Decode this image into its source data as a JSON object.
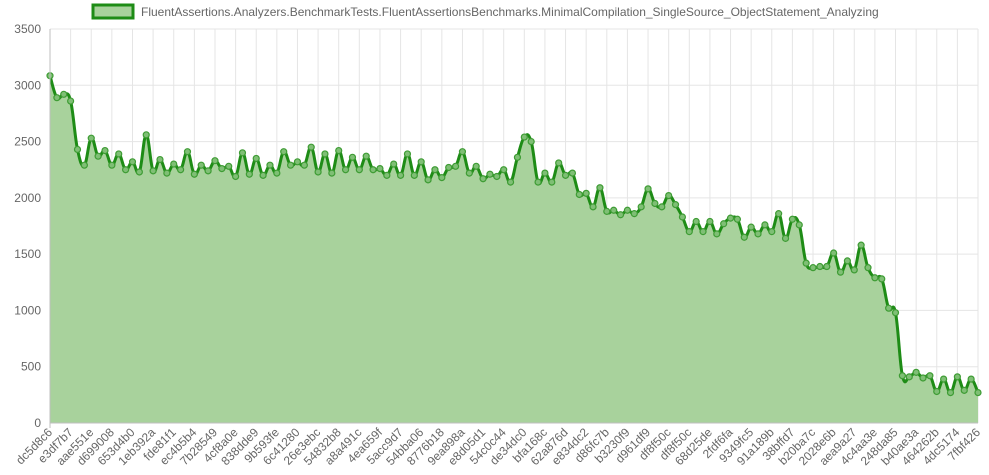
{
  "chart_data": {
    "type": "area",
    "title": "",
    "xlabel": "",
    "ylabel": "",
    "ylim": [
      0,
      3500
    ],
    "yticks": [
      0,
      500,
      1000,
      1500,
      2000,
      2500,
      3000,
      3500
    ],
    "grid": true,
    "legend": "top",
    "colors": {
      "line": "#1e8c16",
      "fill": "#a8d29c",
      "point": "#3e9c34"
    },
    "x_labels": [
      "dc5d8c6",
      "e3df7b7",
      "aae551e",
      "d699008",
      "653d4b0",
      "1eb392a",
      "fde81f1",
      "ec4b5b4",
      "7b28549",
      "4cf8a0e",
      "838dde9",
      "9b593fe",
      "6c41280",
      "26e3ebc",
      "54832b8",
      "a8a491c",
      "4ea659f",
      "5acc9d7",
      "54bba06",
      "8776b18",
      "9ea898a",
      "e8d05d1",
      "54c0c44",
      "de34dc0",
      "bfa168c",
      "62a876d",
      "e834dc2",
      "d86fc7b",
      "b3230f9",
      "d961df9",
      "df8f50c",
      "df8f50c",
      "68d25de",
      "2fdf6fa",
      "9349fc5",
      "91a189b",
      "38bffd7",
      "b20ba7c",
      "2028e6b",
      "aea9a27",
      "4c4aa3e",
      "248da85",
      "b40ae3a",
      "464262b",
      "4dc5174",
      "7fbf426"
    ],
    "series": [
      {
        "name": "FluentAssertions.Analyzers.BenchmarkTests.FluentAssertionsBenchmarks.MinimalCompilation_SingleSource_ObjectStatement_Analyzing",
        "values": [
          3085,
          2890,
          2920,
          2860,
          2430,
          2290,
          2530,
          2370,
          2420,
          2290,
          2390,
          2250,
          2320,
          2230,
          2560,
          2240,
          2340,
          2220,
          2300,
          2250,
          2410,
          2210,
          2290,
          2240,
          2330,
          2260,
          2280,
          2190,
          2400,
          2210,
          2350,
          2200,
          2290,
          2220,
          2410,
          2290,
          2320,
          2290,
          2450,
          2230,
          2390,
          2220,
          2420,
          2250,
          2360,
          2250,
          2370,
          2250,
          2260,
          2200,
          2300,
          2200,
          2390,
          2200,
          2320,
          2160,
          2250,
          2180,
          2270,
          2280,
          2410,
          2220,
          2280,
          2170,
          2210,
          2190,
          2250,
          2140,
          2360,
          2540,
          2500,
          2140,
          2220,
          2140,
          2310,
          2200,
          2220,
          2030,
          2040,
          1920,
          2090,
          1880,
          1890,
          1850,
          1890,
          1860,
          1920,
          2080,
          1950,
          1920,
          2020,
          1940,
          1830,
          1700,
          1790,
          1700,
          1790,
          1680,
          1770,
          1820,
          1810,
          1650,
          1740,
          1680,
          1760,
          1700,
          1860,
          1640,
          1810,
          1760,
          1420,
          1380,
          1390,
          1390,
          1510,
          1340,
          1440,
          1360,
          1580,
          1380,
          1290,
          1280,
          1020,
          980,
          420,
          410,
          450,
          400,
          420,
          280,
          390,
          270,
          410,
          290,
          390,
          270
        ]
      }
    ]
  }
}
